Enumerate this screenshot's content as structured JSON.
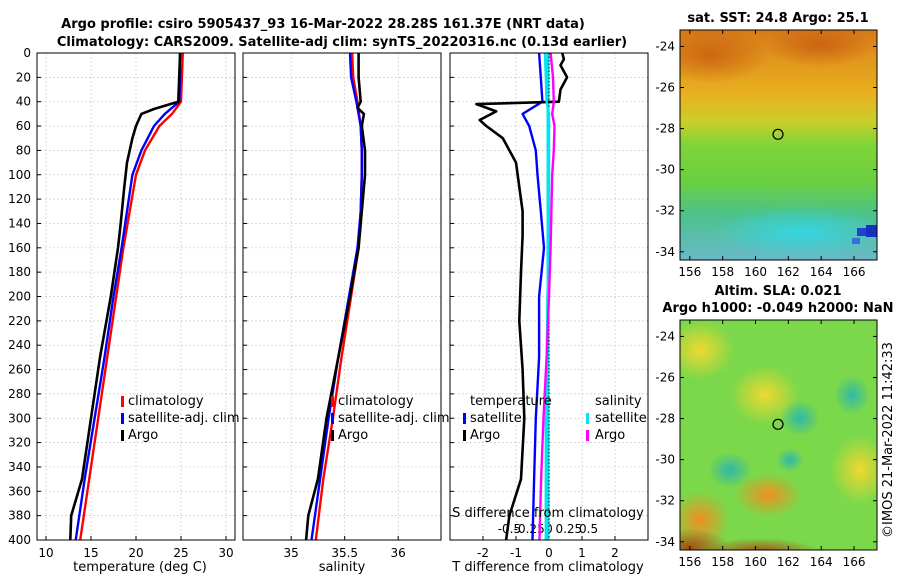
{
  "title_line1": "Argo profile: csiro 5905437_93 16-Mar-2022 28.28S 161.37E (NRT data)",
  "title_line2": "Climatology: CARS2009. Satellite-adj clim: synTS_20220316.nc (0.13d earlier)",
  "sst_title": "sat. SST: 24.8 Argo: 25.1",
  "sla_title1": "Altim. SLA: 0.021",
  "sla_title2": "Argo h1000: -0.049 h2000: NaN",
  "credit": "©IMOS 21-Mar-2022 11:42:33",
  "colors": {
    "climatology": "#ff0000",
    "satellite": "#0000ff",
    "argo": "#000000",
    "sal_satellite": "#00e5ee",
    "sal_argo": "#ff00ff"
  },
  "depth_ticks": [
    "0",
    "20",
    "40",
    "60",
    "80",
    "100",
    "120",
    "140",
    "160",
    "180",
    "200",
    "220",
    "240",
    "260",
    "280",
    "300",
    "320",
    "340",
    "360",
    "380",
    "400"
  ],
  "chart_data": [
    {
      "type": "line",
      "name": "temperature",
      "xlabel": "temperature (deg C)",
      "ylabel": "depth",
      "xlim": [
        9,
        31
      ],
      "ylim": [
        400,
        0
      ],
      "xticks": [
        "10",
        "15",
        "20",
        "25",
        "30"
      ],
      "xtick_values": [
        10,
        15,
        20,
        25,
        30
      ],
      "legend": [
        "climatology",
        "satellite-adj. clim",
        "Argo"
      ],
      "series": [
        {
          "name": "climatology",
          "depth": [
            0,
            20,
            40,
            50,
            60,
            80,
            100,
            130,
            160,
            200,
            250,
            300,
            350,
            400
          ],
          "values": [
            25.2,
            25.1,
            25.0,
            24.0,
            22.6,
            21.0,
            20.0,
            19.3,
            18.6,
            17.8,
            16.8,
            15.8,
            14.8,
            13.8
          ]
        },
        {
          "name": "satellite-adj. clim",
          "depth": [
            0,
            20,
            40,
            50,
            60,
            80,
            100,
            130,
            160,
            200,
            250,
            300,
            350,
            400
          ],
          "values": [
            24.9,
            24.9,
            24.8,
            23.2,
            22.0,
            20.6,
            19.6,
            19.0,
            18.4,
            17.5,
            16.5,
            15.4,
            14.3,
            13.3
          ]
        },
        {
          "name": "Argo",
          "depth": [
            0,
            20,
            40,
            42,
            46,
            50,
            60,
            70,
            90,
            110,
            140,
            160,
            200,
            250,
            300,
            350,
            370,
            380,
            400
          ],
          "values": [
            24.9,
            24.8,
            24.7,
            23.8,
            22.0,
            20.6,
            20.0,
            19.6,
            19.0,
            18.7,
            18.3,
            18.0,
            17.2,
            16.0,
            15.0,
            14.0,
            13.2,
            12.8,
            12.7
          ]
        }
      ]
    },
    {
      "type": "line",
      "name": "salinity",
      "xlabel": "salinity",
      "ylabel": "depth",
      "xlim": [
        34.55,
        36.4
      ],
      "ylim": [
        400,
        0
      ],
      "xticks": [
        "35",
        "35.5",
        "36"
      ],
      "xtick_values": [
        35,
        35.5,
        36
      ],
      "legend": [
        "climatology",
        "satellite-adj. clim",
        "Argo"
      ],
      "series": [
        {
          "name": "climatology",
          "depth": [
            0,
            20,
            40,
            60,
            80,
            100,
            130,
            160,
            200,
            250,
            300,
            350,
            400
          ],
          "values": [
            35.57,
            35.58,
            35.62,
            35.65,
            35.66,
            35.66,
            35.65,
            35.63,
            35.56,
            35.47,
            35.39,
            35.3,
            35.23
          ]
        },
        {
          "name": "satellite-adj. clim",
          "depth": [
            0,
            20,
            40,
            60,
            80,
            100,
            130,
            160,
            200,
            250,
            300,
            350,
            400
          ],
          "values": [
            35.55,
            35.56,
            35.61,
            35.65,
            35.66,
            35.66,
            35.65,
            35.62,
            35.54,
            35.44,
            35.35,
            35.27,
            35.19
          ]
        },
        {
          "name": "Argo",
          "depth": [
            0,
            20,
            40,
            45,
            50,
            60,
            80,
            100,
            130,
            160,
            200,
            250,
            300,
            350,
            380,
            400
          ],
          "values": [
            35.63,
            35.63,
            35.65,
            35.62,
            35.68,
            35.66,
            35.69,
            35.69,
            35.66,
            35.63,
            35.55,
            35.44,
            35.33,
            35.25,
            35.16,
            35.14
          ]
        }
      ]
    },
    {
      "type": "line",
      "name": "difference from climatology",
      "xlabel": "T difference from climatology",
      "xlabel2": "S difference from climatology",
      "ylabel": "depth",
      "xlim": [
        -3,
        3
      ],
      "ylim": [
        400,
        0
      ],
      "xticks": [
        "-2",
        "-1",
        "0",
        "1",
        "2"
      ],
      "xtick_values": [
        -2,
        -1,
        0,
        1,
        2
      ],
      "sticks": [
        "-0.5",
        "-0.25",
        "0",
        "0.25",
        "0.5"
      ],
      "legend_t_header": "temperature",
      "legend_s_header": "salinity",
      "legend_t": [
        "satellite",
        "Argo"
      ],
      "legend_s": [
        "satellite",
        "Argo"
      ],
      "series": [
        {
          "name": "T satellite",
          "depth": [
            0,
            20,
            40,
            50,
            60,
            80,
            100,
            130,
            160,
            200,
            250,
            300,
            350,
            400
          ],
          "values": [
            -0.3,
            -0.25,
            -0.2,
            -0.8,
            -0.6,
            -0.4,
            -0.35,
            -0.25,
            -0.15,
            -0.3,
            -0.3,
            -0.4,
            -0.45,
            -0.5
          ]
        },
        {
          "name": "T Argo",
          "depth": [
            0,
            5,
            10,
            20,
            30,
            40,
            42,
            48,
            55,
            60,
            70,
            80,
            90,
            110,
            130,
            150,
            180,
            220,
            260,
            300,
            350,
            380,
            400
          ],
          "values": [
            0.4,
            0.45,
            0.35,
            0.55,
            0.35,
            0.3,
            -2.2,
            -1.6,
            -2.1,
            -1.9,
            -1.4,
            -1.2,
            -1.0,
            -0.9,
            -0.8,
            -0.8,
            -0.85,
            -0.9,
            -0.8,
            -0.75,
            -0.85,
            -1.2,
            -1.3
          ]
        },
        {
          "name": "S satellite",
          "depth": [
            0,
            40,
            50,
            80,
            120,
            160,
            200,
            260,
            300,
            350,
            400
          ],
          "values": [
            -0.05,
            -0.03,
            0.0,
            0.0,
            0.0,
            0.0,
            -0.02,
            -0.03,
            -0.04,
            -0.04,
            -0.04
          ]
        },
        {
          "name": "S Argo",
          "depth": [
            0,
            20,
            40,
            50,
            60,
            80,
            100,
            130,
            160,
            200,
            250,
            300,
            350,
            400
          ],
          "values": [
            0.02,
            0.05,
            0.06,
            0.04,
            0.07,
            0.06,
            0.04,
            0.03,
            0.02,
            0.0,
            -0.03,
            -0.07,
            -0.1,
            -0.12
          ]
        }
      ]
    },
    {
      "type": "heatmap",
      "name": "satellite SST map",
      "xlim": [
        155.4,
        167.4
      ],
      "ylim": [
        -34.4,
        -23.2
      ],
      "xticks": [
        "156",
        "158",
        "160",
        "162",
        "164",
        "166"
      ],
      "xtick_values": [
        156,
        158,
        160,
        162,
        164,
        166
      ],
      "yticks": [
        "-24",
        "-26",
        "-28",
        "-30",
        "-32",
        "-34"
      ],
      "ytick_values": [
        -24,
        -26,
        -28,
        -30,
        -32,
        -34
      ],
      "marker": {
        "lon": 161.37,
        "lat": -28.28
      }
    },
    {
      "type": "heatmap",
      "name": "altimetry SLA map",
      "xlim": [
        155.4,
        167.4
      ],
      "ylim": [
        -34.4,
        -23.2
      ],
      "xticks": [
        "156",
        "158",
        "160",
        "162",
        "164",
        "166"
      ],
      "xtick_values": [
        156,
        158,
        160,
        162,
        164,
        166
      ],
      "yticks": [
        "-24",
        "-26",
        "-28",
        "-30",
        "-32",
        "-34"
      ],
      "ytick_values": [
        -24,
        -26,
        -28,
        -30,
        -32,
        -34
      ],
      "marker": {
        "lon": 161.37,
        "lat": -28.28
      }
    }
  ]
}
